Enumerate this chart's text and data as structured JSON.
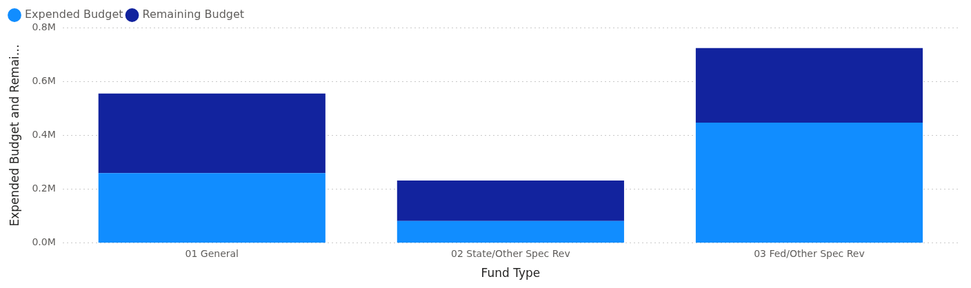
{
  "chart_data": {
    "type": "bar",
    "stacked": true,
    "xlabel": "Fund Type",
    "ylabel": "Expended Budget and Remai…",
    "categories": [
      "01 General",
      "02 State/Other Spec Rev",
      "03 Fed/Other Spec Rev"
    ],
    "series": [
      {
        "name": "Expended Budget",
        "color": "#118dff",
        "values": [
          0.26,
          0.082,
          0.447
        ]
      },
      {
        "name": "Remaining Budget",
        "color": "#12239e",
        "values": [
          0.295,
          0.15,
          0.277
        ]
      }
    ],
    "ylim": [
      0,
      0.8
    ],
    "yticks": [
      {
        "value": 0,
        "label": "0.0M"
      },
      {
        "value": 0.2,
        "label": "0.2M"
      },
      {
        "value": 0.4,
        "label": "0.4M"
      },
      {
        "value": 0.6,
        "label": "0.6M"
      },
      {
        "value": 0.8,
        "label": "0.8M"
      }
    ],
    "grid": "y",
    "legend": "top left"
  }
}
